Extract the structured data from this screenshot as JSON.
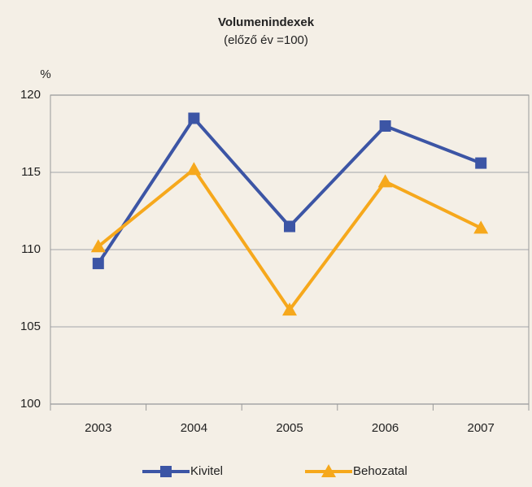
{
  "chart_data": {
    "type": "line",
    "title": "Volumenindexek",
    "subtitle": "(előző év =100)",
    "y_label": "%",
    "categories": [
      "2003",
      "2004",
      "2005",
      "2006",
      "2007"
    ],
    "series": [
      {
        "name": "Kivitel",
        "color": "#3c55a5",
        "marker": "square",
        "values": [
          109.1,
          118.5,
          111.5,
          118.0,
          115.6
        ]
      },
      {
        "name": "Behozatal",
        "color": "#f6a81c",
        "marker": "triangle",
        "values": [
          110.2,
          115.2,
          106.1,
          114.4,
          111.4
        ]
      }
    ],
    "ylim": [
      100,
      120
    ],
    "yticks": [
      100,
      105,
      110,
      115,
      120
    ],
    "grid": true,
    "legend": "bottom"
  }
}
